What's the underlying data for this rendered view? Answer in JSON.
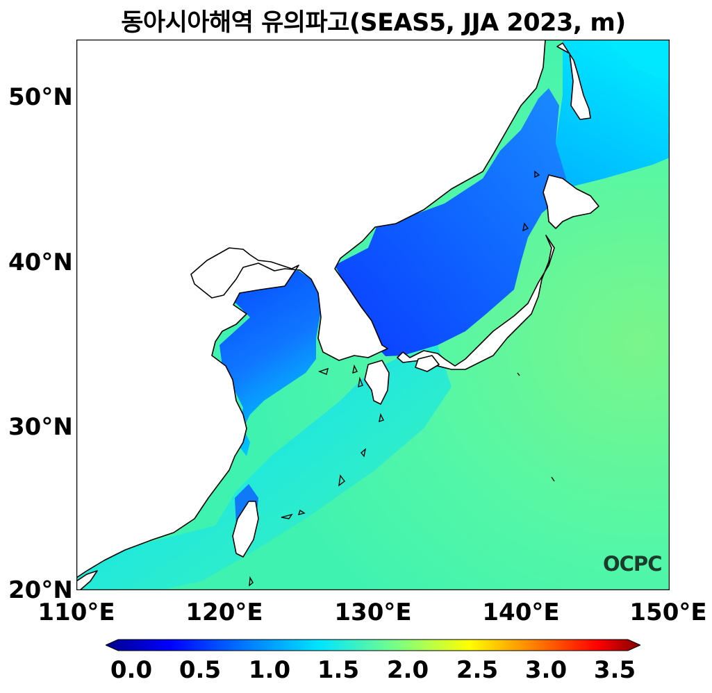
{
  "title": "동아시아해역 유의파고(SEAS5, JJA 2023, m)",
  "map": {
    "lat_range": [
      20,
      53.5
    ],
    "lon_range": [
      110,
      150
    ],
    "lat_ticks": [
      "50°N",
      "40°N",
      "30°N",
      "20°N"
    ],
    "lon_ticks": [
      "110°E",
      "120°E",
      "130°E",
      "140°E",
      "150°E"
    ],
    "variable": "significant wave height",
    "units": "m"
  },
  "colorbar": {
    "min": 0.0,
    "max": 3.5,
    "labels": [
      "0.0",
      "0.5",
      "1.0",
      "1.5",
      "2.0",
      "2.5",
      "3.0",
      "3.5"
    ],
    "colors": [
      "#00008b",
      "#0000ff",
      "#0080ff",
      "#00e5ff",
      "#7fff7f",
      "#ffff00",
      "#ff8000",
      "#ff0000",
      "#800000"
    ],
    "extend": "both"
  },
  "logo": "OCPC"
}
